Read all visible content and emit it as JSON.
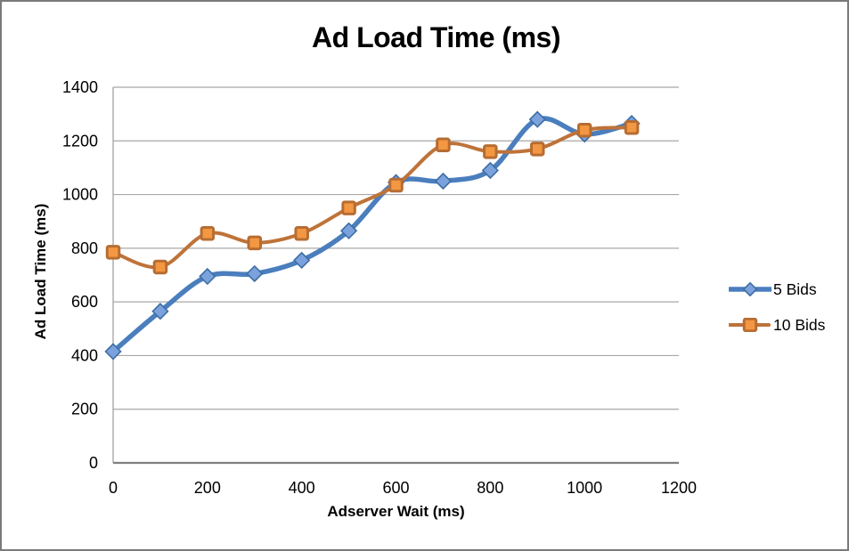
{
  "frame": {
    "background": "#ffffff",
    "border_color": "#7a7a7a"
  },
  "chart_data": {
    "type": "line",
    "title": "Ad Load Time (ms)",
    "xlabel": "Adserver Wait (ms)",
    "ylabel": "Ad Load Time (ms)",
    "x": [
      0,
      100,
      200,
      300,
      400,
      500,
      600,
      700,
      800,
      900,
      1000,
      1100
    ],
    "series": [
      {
        "name": "5 Bids",
        "values": [
          415,
          565,
          695,
          705,
          755,
          865,
          1045,
          1050,
          1090,
          1280,
          1225,
          1265
        ],
        "line_color": "#4A7EBD",
        "line_width": 5.5,
        "marker": "diamond",
        "marker_fill": "#7BA2DC",
        "marker_stroke": "#3E6DA4"
      },
      {
        "name": "10 Bids",
        "values": [
          785,
          730,
          855,
          820,
          855,
          950,
          1035,
          1185,
          1160,
          1170,
          1240,
          1250
        ],
        "line_color": "#BE7339",
        "line_width": 4,
        "marker": "square",
        "marker_fill": "#F49742",
        "marker_stroke": "#B66D33"
      }
    ],
    "xlim": [
      0,
      1200
    ],
    "ylim": [
      0,
      1400
    ],
    "x_ticks": [
      0,
      200,
      400,
      600,
      800,
      1000,
      1200
    ],
    "y_ticks": [
      0,
      200,
      400,
      600,
      800,
      1000,
      1200,
      1400
    ],
    "grid": true,
    "smooth": true,
    "legend_position": "right",
    "grid_color": "#A8A8A8",
    "axis_color": "#7F7F7F"
  }
}
